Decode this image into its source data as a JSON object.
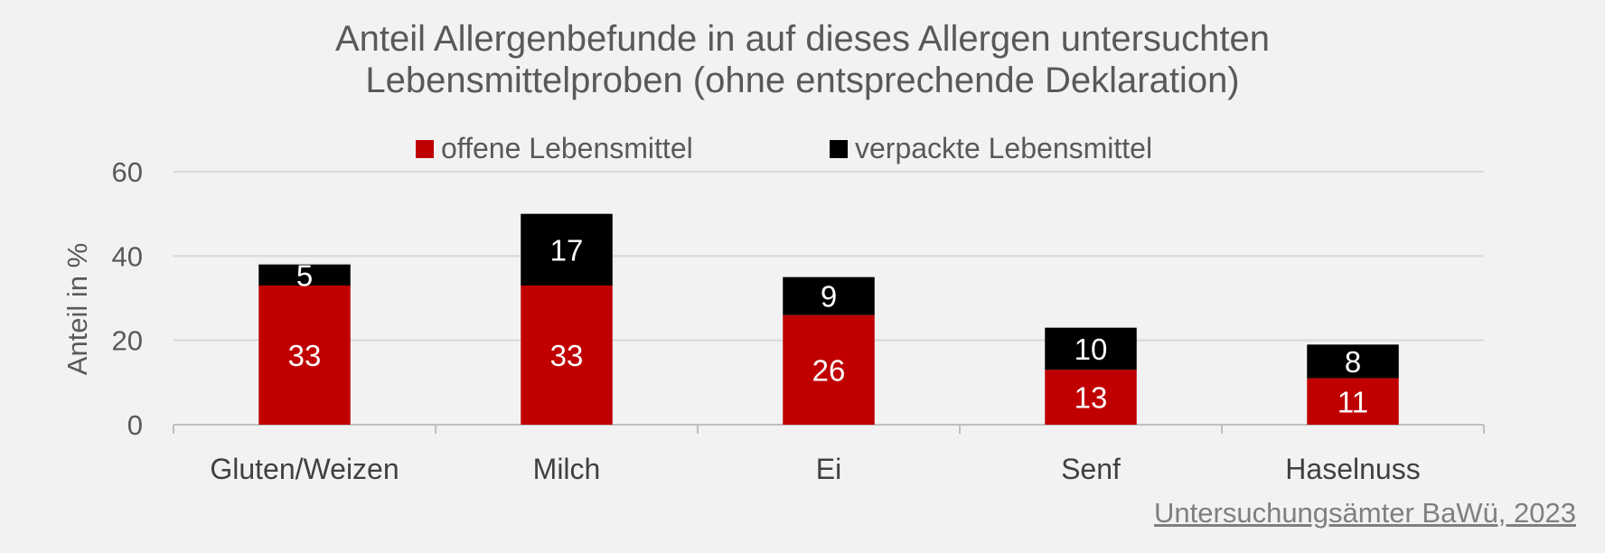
{
  "chart_data": {
    "type": "bar",
    "stacked": true,
    "title_lines": [
      "Anteil Allergenbefunde in auf dieses Allergen untersuchten",
      "Lebensmittelproben (ohne entsprechende Deklaration)"
    ],
    "categories": [
      "Gluten/Weizen",
      "Milch",
      "Ei",
      "Senf",
      "Haselnuss"
    ],
    "series": [
      {
        "name": "offene Lebensmittel",
        "values": [
          33,
          33,
          26,
          13,
          11
        ],
        "color": "#c00000",
        "label_color": "#ffffff"
      },
      {
        "name": "verpackte Lebensmittel",
        "values": [
          5,
          17,
          9,
          10,
          8
        ],
        "color": "#000000",
        "label_color": "#ffffff"
      }
    ],
    "ylabel": "Anteil in %",
    "xlabel": "",
    "ylim": [
      0,
      60
    ],
    "yticks": [
      0,
      20,
      40,
      60
    ],
    "grid": true,
    "legend_position": "top",
    "source": "Untersuchungsämter BaWü, 2023"
  }
}
